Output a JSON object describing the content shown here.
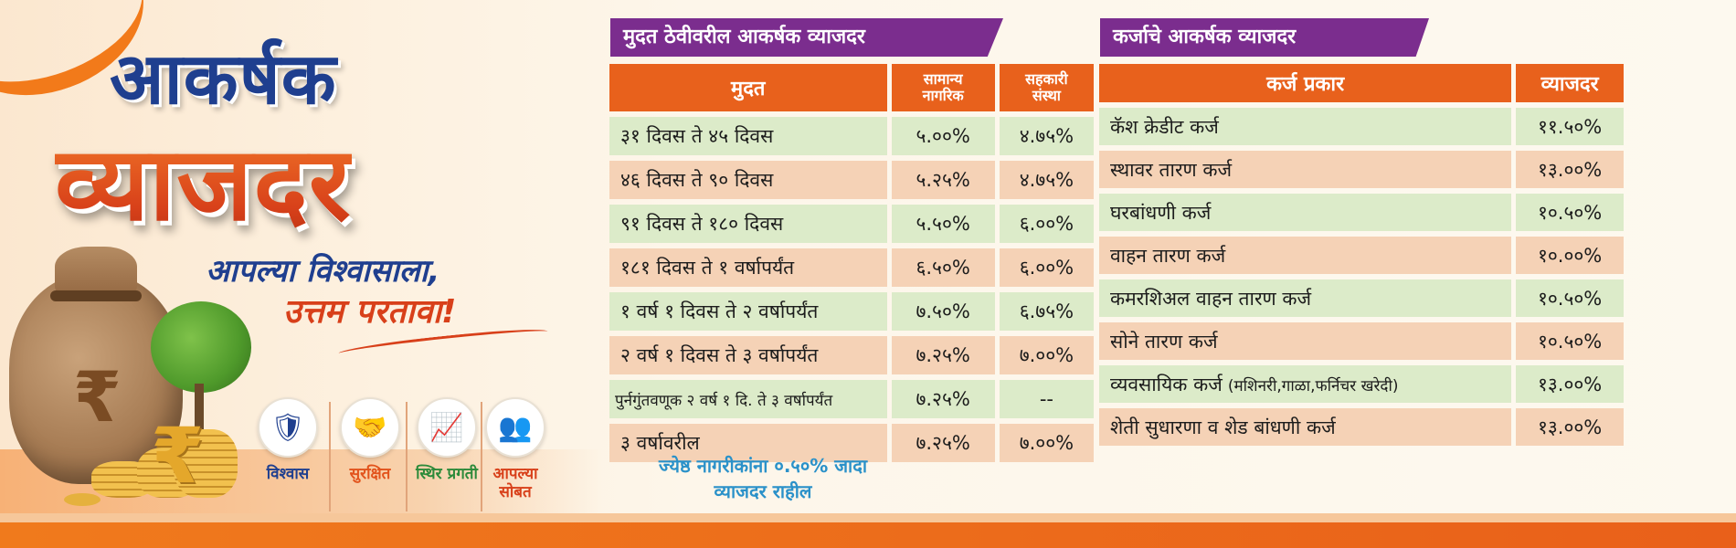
{
  "headline": {
    "line1": "आकर्षक",
    "line2": "व्याजदर"
  },
  "tagline": {
    "line1": "आपल्या विश्वासाला,",
    "line2": "उत्तम परतावा!"
  },
  "illustration": {
    "bag_symbol": "₹",
    "coin_symbol": "₹"
  },
  "features": [
    {
      "label": "विश्वास",
      "icon": "shield-icon",
      "glyph": "🛡",
      "color": "#1f3f8f"
    },
    {
      "label": "सुरक्षित",
      "icon": "handshake-icon",
      "glyph": "🤝",
      "color": "#e2531c"
    },
    {
      "label": "स्थिर प्रगती",
      "icon": "growth-chart-icon",
      "glyph": "📈",
      "color": "#2c8a3a"
    },
    {
      "label": "आपल्या सोबत",
      "icon": "people-group-icon",
      "glyph": "👥",
      "color": "#d8401a"
    }
  ],
  "deposit": {
    "title": "मुदत ठेवीवरील आकर्षक व्याजदर",
    "headers": {
      "term": "मुदत",
      "general_line1": "सामान्य",
      "general_line2": "नागरिक",
      "coop_line1": "सहकारी",
      "coop_line2": "संस्था"
    },
    "rows": [
      {
        "term": "३१ दिवस ते ४५ दिवस",
        "general": "५.००%",
        "coop": "४.७५%"
      },
      {
        "term": "४६ दिवस ते ९० दिवस",
        "general": "५.२५%",
        "coop": "४.७५%"
      },
      {
        "term": "९१ दिवस ते १८० दिवस",
        "general": "५.५०%",
        "coop": "६.००%"
      },
      {
        "term": "१८१ दिवस ते १ वर्षापर्यंत",
        "general": "६.५०%",
        "coop": "६.००%"
      },
      {
        "term": "१ वर्ष १ दिवस ते २ वर्षापर्यंत",
        "general": "७.५०%",
        "coop": "६.७५%"
      },
      {
        "term": "२ वर्ष १ दिवस ते ३ वर्षापर्यंत",
        "general": "७.२५%",
        "coop": "७.००%"
      },
      {
        "term": "पुर्नगुंतवणूक २ वर्ष १ दि. ते ३ वर्षापर्यंत",
        "general": "७.२५%",
        "coop": "--"
      },
      {
        "term": "३ वर्षावरील",
        "general": "७.२५%",
        "coop": "७.००%"
      }
    ],
    "senior_note_line1": "ज्येष्ठ नागरीकांना ०.५०% जादा",
    "senior_note_line2": "व्याजदर राहील"
  },
  "loan": {
    "title": "कर्जाचे आकर्षक व्याजदर",
    "headers": {
      "type": "कर्ज प्रकार",
      "rate": "व्याजदर"
    },
    "rows": [
      {
        "type": "कॅश क्रेडीट कर्ज",
        "rate": "११.५०%"
      },
      {
        "type": "स्थावर तारण कर्ज",
        "rate": "१३.००%"
      },
      {
        "type": "घरबांधणी कर्ज",
        "rate": "१०.५०%"
      },
      {
        "type": "वाहन तारण कर्ज",
        "rate": "१०.००%"
      },
      {
        "type": "कमरशिअल वाहन तारण कर्ज",
        "rate": "१०.५०%"
      },
      {
        "type": "सोने तारण कर्ज",
        "rate": "१०.५०%"
      },
      {
        "type": "व्यवसायिक कर्ज",
        "type_note": "(मशिनरी,गाळा,फर्निचर खरेदी)",
        "rate": "१३.००%"
      },
      {
        "type": "शेती सुधारणा व शेड बांधणी कर्ज",
        "rate": "१३.००%"
      }
    ]
  },
  "colors": {
    "purple_ribbon": "#7b2d8e",
    "orange_header": "#e8611c",
    "row_green": "#dcebc9",
    "row_peach": "#f5d2b6",
    "navy": "#1f3f8f",
    "note_blue": "#2a91c9"
  }
}
